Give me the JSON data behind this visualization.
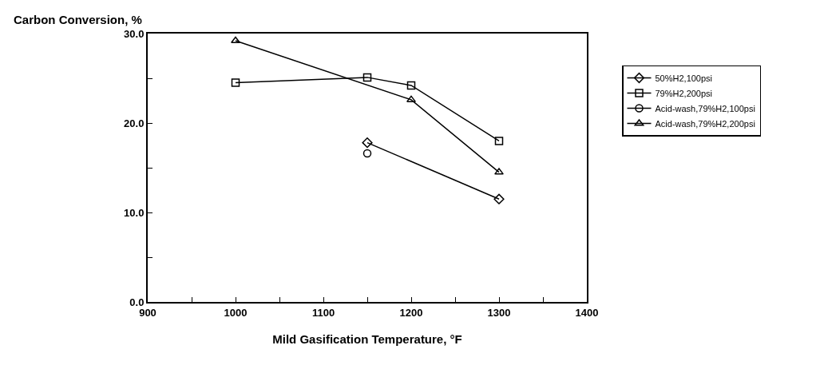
{
  "chart_data": {
    "type": "line",
    "xlabel": "Mild Gasification Temperature, °F",
    "ylabel": "Carbon Conversion, %",
    "xlim": [
      900,
      1400
    ],
    "ylim": [
      0,
      30
    ],
    "xticks": [
      900,
      {
        "value": 950,
        "label": null
      },
      1000,
      {
        "value": 1050,
        "label": null
      },
      1100,
      {
        "value": 1150,
        "label": null
      },
      1200,
      {
        "value": 1250,
        "label": null
      },
      1300,
      {
        "value": 1350,
        "label": null
      },
      1400
    ],
    "yticks": [
      {
        "value": 0,
        "label": "0.0"
      },
      {
        "value": 5,
        "label": null
      },
      {
        "value": 10,
        "label": "10.0"
      },
      {
        "value": 15,
        "label": null
      },
      {
        "value": 20,
        "label": "20.0"
      },
      {
        "value": 25,
        "label": null
      },
      {
        "value": 30,
        "label": "30.0"
      }
    ],
    "grid": false,
    "legend": "right",
    "line_style": "solid",
    "series": [
      {
        "name": "50%H2,100psi",
        "color": "#000000",
        "marker": "diamond",
        "x": [
          1150,
          1300
        ],
        "values": [
          17.8,
          11.5
        ]
      },
      {
        "name": "79%H2,200psi",
        "color": "#000000",
        "marker": "square",
        "x": [
          1000,
          1150,
          1200,
          1300
        ],
        "values": [
          24.5,
          25.1,
          24.2,
          18.0
        ]
      },
      {
        "name": "Acid-wash,79%H2,100psi",
        "color": "#000000",
        "marker": "circle",
        "x": [
          1150
        ],
        "values": [
          16.6
        ]
      },
      {
        "name": "Acid-wash,79%H2,200psi",
        "color": "#000000",
        "marker": "triangle",
        "x": [
          1000,
          1200,
          1300
        ],
        "values": [
          29.2,
          22.6,
          14.5
        ]
      }
    ]
  }
}
